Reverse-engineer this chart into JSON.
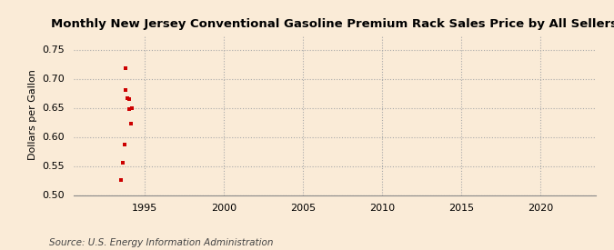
{
  "title": "Monthly New Jersey Conventional Gasoline Premium Rack Sales Price by All Sellers",
  "ylabel": "Dollars per Gallon",
  "source": "Source: U.S. Energy Information Administration",
  "background_color": "#faebd7",
  "data_color": "#cc0000",
  "xlim": [
    1990.5,
    2023.5
  ],
  "ylim": [
    0.5,
    0.775
  ],
  "xticks": [
    1995,
    2000,
    2005,
    2010,
    2015,
    2020
  ],
  "yticks": [
    0.5,
    0.55,
    0.6,
    0.65,
    0.7,
    0.75
  ],
  "x_values": [
    1993.5,
    1993.6,
    1993.7,
    1993.75,
    1993.8,
    1993.9,
    1994.0,
    1994.0,
    1994.1,
    1994.2
  ],
  "y_values": [
    0.526,
    0.556,
    0.587,
    0.718,
    0.68,
    0.666,
    0.665,
    0.648,
    0.622,
    0.65
  ]
}
